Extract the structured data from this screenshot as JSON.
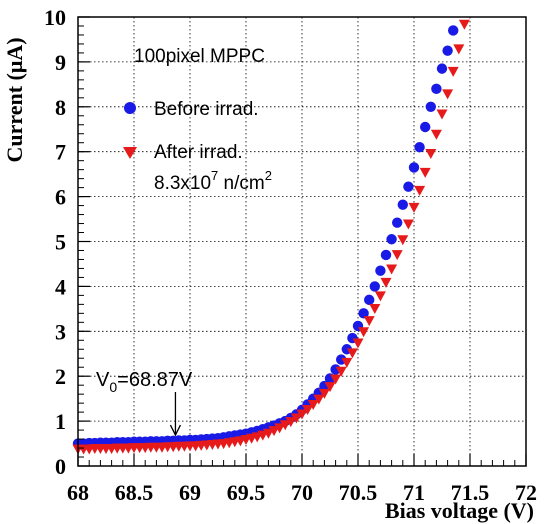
{
  "chart_data": {
    "type": "scatter",
    "xlabel": "Bias voltage (V)",
    "ylabel": "Current (μA)",
    "xlim": [
      68,
      72
    ],
    "ylim": [
      0,
      10
    ],
    "x_ticks": [
      "68",
      "68.5",
      "69",
      "69.5",
      "70",
      "70.5",
      "71",
      "71.5",
      "72"
    ],
    "y_ticks": [
      "0",
      "1",
      "2",
      "3",
      "4",
      "5",
      "6",
      "7",
      "8",
      "9",
      "10"
    ],
    "grid": true,
    "legend_title": "100pixel MPPC",
    "legend_position": "top-left",
    "series": [
      {
        "name": "Before irrad.",
        "marker": "circle",
        "color": "#1a1ae6",
        "x": [
          68.0,
          68.05,
          68.1,
          68.15,
          68.2,
          68.25,
          68.3,
          68.35,
          68.4,
          68.45,
          68.5,
          68.55,
          68.6,
          68.65,
          68.7,
          68.75,
          68.8,
          68.85,
          68.9,
          68.95,
          69.0,
          69.05,
          69.1,
          69.15,
          69.2,
          69.25,
          69.3,
          69.35,
          69.4,
          69.45,
          69.5,
          69.55,
          69.6,
          69.65,
          69.7,
          69.75,
          69.8,
          69.85,
          69.9,
          69.95,
          70.0,
          70.05,
          70.1,
          70.15,
          70.2,
          70.25,
          70.3,
          70.35,
          70.4,
          70.45,
          70.5,
          70.55,
          70.6,
          70.65,
          70.7,
          70.75,
          70.8,
          70.85,
          70.9,
          70.95,
          71.0,
          71.05,
          71.1,
          71.15,
          71.2,
          71.25,
          71.3,
          71.35
        ],
        "y": [
          0.5,
          0.5,
          0.51,
          0.51,
          0.52,
          0.52,
          0.52,
          0.53,
          0.53,
          0.53,
          0.54,
          0.54,
          0.54,
          0.55,
          0.55,
          0.55,
          0.56,
          0.56,
          0.57,
          0.57,
          0.58,
          0.58,
          0.59,
          0.6,
          0.61,
          0.62,
          0.64,
          0.66,
          0.68,
          0.7,
          0.72,
          0.75,
          0.78,
          0.82,
          0.86,
          0.9,
          0.95,
          1.0,
          1.07,
          1.15,
          1.25,
          1.37,
          1.5,
          1.63,
          1.78,
          1.95,
          2.15,
          2.37,
          2.6,
          2.85,
          3.12,
          3.4,
          3.7,
          4.0,
          4.35,
          4.7,
          5.05,
          5.42,
          5.82,
          6.22,
          6.65,
          7.1,
          7.55,
          8.0,
          8.4,
          8.85,
          9.25,
          9.7
        ]
      },
      {
        "name": "After irrad.",
        "name_line2": "8.3x10",
        "name_line2_exp": "7",
        "name_line2_unit": " n/cm",
        "name_line2_unit_exp": "2",
        "marker": "triangle-down",
        "color": "#e61a1a",
        "x": [
          68.0,
          68.05,
          68.1,
          68.15,
          68.2,
          68.25,
          68.3,
          68.35,
          68.4,
          68.45,
          68.5,
          68.55,
          68.6,
          68.65,
          68.7,
          68.75,
          68.8,
          68.85,
          68.9,
          68.95,
          69.0,
          69.05,
          69.1,
          69.15,
          69.2,
          69.25,
          69.3,
          69.35,
          69.4,
          69.45,
          69.5,
          69.55,
          69.6,
          69.65,
          69.7,
          69.75,
          69.8,
          69.85,
          69.9,
          69.95,
          70.0,
          70.05,
          70.1,
          70.15,
          70.2,
          70.25,
          70.3,
          70.35,
          70.4,
          70.45,
          70.5,
          70.55,
          70.6,
          70.65,
          70.7,
          70.75,
          70.8,
          70.85,
          70.9,
          70.95,
          71.0,
          71.05,
          71.1,
          71.15,
          71.2,
          71.25,
          71.3,
          71.35,
          71.4,
          71.45
        ],
        "y": [
          0.39,
          0.39,
          0.39,
          0.4,
          0.4,
          0.4,
          0.4,
          0.41,
          0.41,
          0.41,
          0.42,
          0.42,
          0.42,
          0.43,
          0.43,
          0.43,
          0.44,
          0.44,
          0.45,
          0.45,
          0.46,
          0.46,
          0.47,
          0.48,
          0.49,
          0.5,
          0.51,
          0.53,
          0.55,
          0.57,
          0.6,
          0.63,
          0.66,
          0.7,
          0.74,
          0.8,
          0.86,
          0.93,
          1.0,
          1.08,
          1.17,
          1.27,
          1.38,
          1.5,
          1.63,
          1.78,
          1.95,
          2.12,
          2.32,
          2.53,
          2.75,
          3.0,
          3.25,
          3.52,
          3.8,
          4.1,
          4.4,
          4.72,
          5.05,
          5.4,
          5.77,
          6.15,
          6.55,
          6.97,
          7.4,
          7.85,
          8.3,
          8.8,
          9.3,
          9.85
        ]
      }
    ],
    "annotation": {
      "prefix": "V",
      "subscript": "0",
      "value": "=68.87V",
      "x": 68.87,
      "arrow_to_y": 0.6
    }
  }
}
